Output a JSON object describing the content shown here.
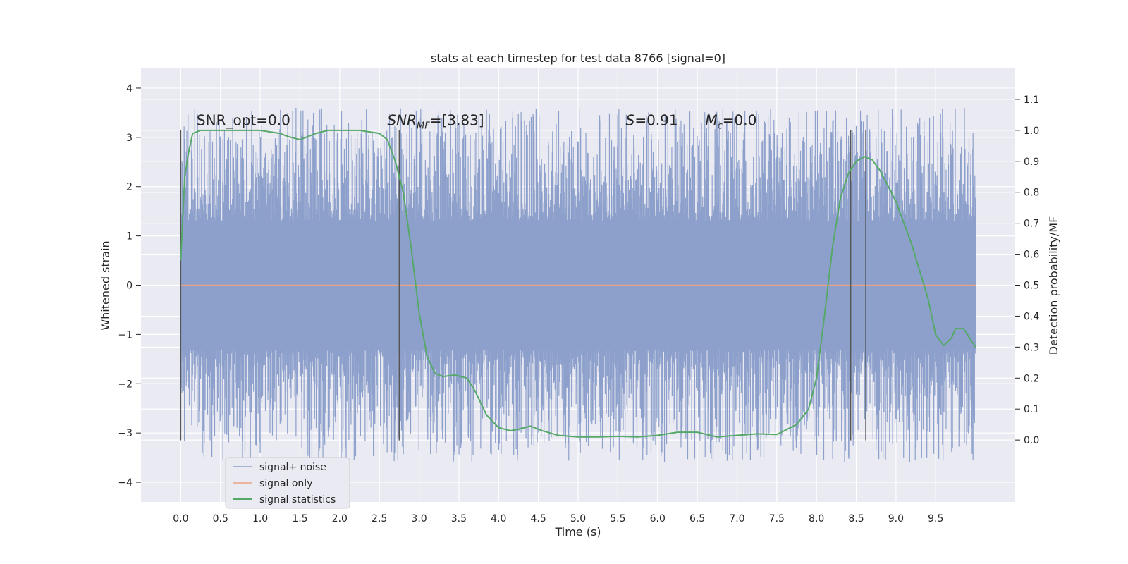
{
  "chart_data": {
    "type": "line",
    "title": "stats at each timestep for test data 8766 [signal=0]",
    "xlabel": "Time (s)",
    "ylabel": "Whitened strain",
    "y2label": "Detection probability/MF",
    "xlim": [
      -0.5,
      10.5
    ],
    "ylim": [
      -4.4,
      4.4
    ],
    "y2lim": [
      -0.2,
      1.2
    ],
    "xticks": [
      0.0,
      0.5,
      1.0,
      1.5,
      2.0,
      2.5,
      3.0,
      3.5,
      4.0,
      4.5,
      5.0,
      5.5,
      6.0,
      6.5,
      7.0,
      7.5,
      8.0,
      8.5,
      9.0,
      9.5
    ],
    "xtick_labels": [
      "0.0",
      "0.5",
      "1.0",
      "1.5",
      "2.0",
      "2.5",
      "3.0",
      "3.5",
      "4.0",
      "4.5",
      "5.0",
      "5.5",
      "6.0",
      "6.5",
      "7.0",
      "7.5",
      "8.0",
      "8.5",
      "9.0",
      "9.5"
    ],
    "yticks": [
      -4,
      -3,
      -2,
      -1,
      0,
      1,
      2,
      3,
      4
    ],
    "ytick_labels": [
      "−4",
      "−3",
      "−2",
      "−1",
      "0",
      "1",
      "2",
      "3",
      "4"
    ],
    "y2ticks": [
      0.0,
      0.1,
      0.2,
      0.3,
      0.4,
      0.5,
      0.6,
      0.7,
      0.8,
      0.9,
      1.0,
      1.1
    ],
    "y2tick_labels": [
      "0.0",
      "0.1",
      "0.2",
      "0.3",
      "0.4",
      "0.5",
      "0.6",
      "0.7",
      "0.8",
      "0.9",
      "1.0",
      "1.1"
    ],
    "grid": true,
    "legend_position": "lower-left",
    "series": [
      {
        "name": "signal+ noise",
        "axis": "left",
        "color": "#8da0cb",
        "style": "dense noise",
        "x_range": [
          0.0,
          10.0
        ],
        "core_amplitude": 1.3,
        "max": 4.0,
        "min": -4.0
      },
      {
        "name": "signal only",
        "axis": "left",
        "color": "#e9a283",
        "x": [
          0.0,
          10.0
        ],
        "y": [
          0.0,
          0.0
        ]
      },
      {
        "name": "signal statistics",
        "axis": "right",
        "color": "#55a868",
        "x": [
          0.0,
          0.05,
          0.1,
          0.15,
          0.25,
          0.5,
          0.75,
          1.0,
          1.25,
          1.35,
          1.5,
          1.6,
          1.7,
          1.85,
          2.0,
          2.25,
          2.5,
          2.6,
          2.7,
          2.8,
          2.9,
          3.0,
          3.1,
          3.2,
          3.3,
          3.45,
          3.6,
          3.7,
          3.85,
          4.0,
          4.15,
          4.25,
          4.4,
          4.55,
          4.75,
          5.0,
          5.25,
          5.5,
          5.75,
          6.0,
          6.25,
          6.5,
          6.75,
          7.0,
          7.25,
          7.5,
          7.75,
          7.9,
          8.0,
          8.1,
          8.2,
          8.3,
          8.4,
          8.5,
          8.6,
          8.7,
          8.8,
          9.0,
          9.2,
          9.4,
          9.5,
          9.6,
          9.7,
          9.75,
          9.85,
          9.95,
          10.0
        ],
        "y": [
          0.58,
          0.85,
          0.93,
          0.99,
          1.0,
          1.0,
          1.0,
          1.0,
          0.99,
          0.98,
          0.97,
          0.98,
          0.99,
          1.0,
          1.0,
          1.0,
          0.99,
          0.97,
          0.9,
          0.8,
          0.62,
          0.41,
          0.27,
          0.215,
          0.205,
          0.21,
          0.2,
          0.16,
          0.08,
          0.04,
          0.03,
          0.035,
          0.045,
          0.03,
          0.015,
          0.01,
          0.01,
          0.012,
          0.01,
          0.015,
          0.025,
          0.025,
          0.01,
          0.015,
          0.02,
          0.018,
          0.05,
          0.1,
          0.2,
          0.4,
          0.62,
          0.78,
          0.86,
          0.9,
          0.915,
          0.905,
          0.87,
          0.77,
          0.63,
          0.46,
          0.34,
          0.305,
          0.33,
          0.36,
          0.36,
          0.32,
          0.3
        ]
      }
    ],
    "vlines": [
      0.0,
      2.75,
      8.43,
      8.62
    ],
    "vline_range": [
      -3.15,
      3.15
    ],
    "annotations": [
      {
        "x": 0.2,
        "y": 3.25,
        "text": "SNR_opt=0.0"
      },
      {
        "x": 2.6,
        "y": 3.25,
        "text": "SNR_MF=[3.83]"
      },
      {
        "x": 5.6,
        "y": 3.25,
        "text": "S=0.91"
      },
      {
        "x": 6.6,
        "y": 3.25,
        "text": "M_c=0.0"
      }
    ]
  }
}
